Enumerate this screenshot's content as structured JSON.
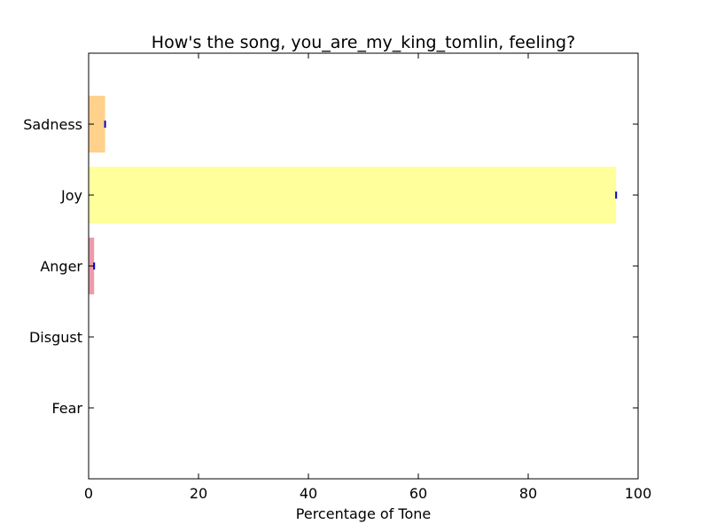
{
  "chart_data": {
    "type": "bar",
    "orientation": "horizontal",
    "title": "How's the song, you_are_my_king_tomlin, feeling?",
    "xlabel": "Percentage of Tone",
    "ylabel": "",
    "xlim": [
      0,
      100
    ],
    "x_ticks": [
      0,
      20,
      40,
      60,
      80,
      100
    ],
    "grid": false,
    "categories": [
      "Fear",
      "Disgust",
      "Anger",
      "Joy",
      "Sadness"
    ],
    "values": [
      0,
      0,
      1,
      96,
      3
    ],
    "colors": [
      "#e8e8e8",
      "#c8e6c9",
      "#e0667e",
      "#ffff66",
      "#ffb84d"
    ],
    "error_marker_color": "#0000cc"
  }
}
